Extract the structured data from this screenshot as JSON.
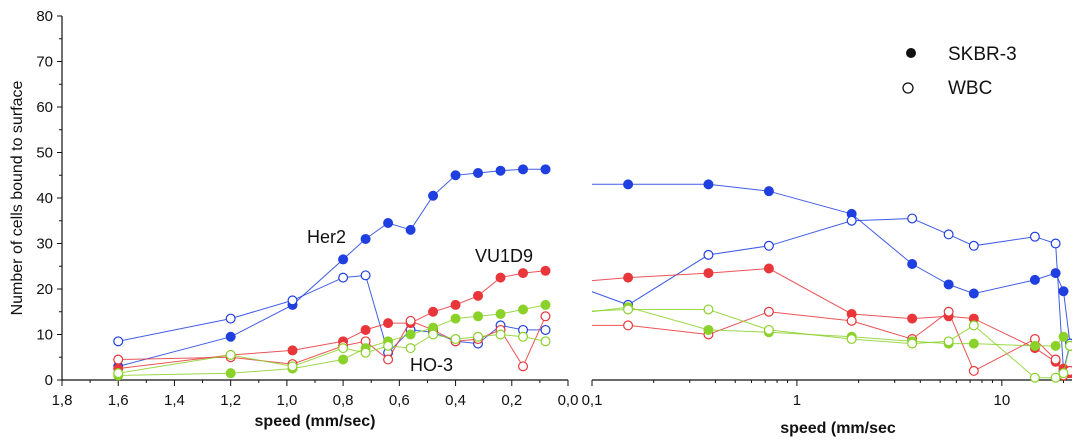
{
  "colors": {
    "her2": "#1f3fe0",
    "vu1d9": "#e8363a",
    "ho3": "#8ad12a",
    "axis": "#111111"
  },
  "legend": {
    "solid_label": "SKBR-3",
    "open_label": "WBC"
  },
  "chart_data": [
    {
      "type": "line",
      "title": "",
      "xlabel": "speed (mm/sec)",
      "ylabel": "Number of cells bound to surface",
      "xlim": [
        1.8,
        0.0
      ],
      "ylim": [
        0,
        80
      ],
      "x_reversed": true,
      "x_ticks": [
        "1,8",
        "1,6",
        "1,4",
        "1,2",
        "1,0",
        "0,8",
        "0,6",
        "0,4",
        "0,2",
        "0,0"
      ],
      "y_ticks": [
        "0",
        "10",
        "20",
        "30",
        "40",
        "50",
        "60",
        "70",
        "80"
      ],
      "annotations": [
        {
          "text": "Her2",
          "x": 0.9,
          "y": 31.5
        },
        {
          "text": "VU1D9",
          "x": 0.21,
          "y": 27.8
        },
        {
          "text": "HO-3",
          "x": 0.44,
          "y": 2.2
        }
      ],
      "series": [
        {
          "antibody": "her2",
          "cells": "SKBR-3",
          "marker": "filled",
          "x": [
            1.6,
            1.2,
            0.98,
            0.8,
            0.72,
            0.64,
            0.56,
            0.48,
            0.4,
            0.32,
            0.24,
            0.16,
            0.08
          ],
          "y": [
            3,
            9.5,
            16.5,
            26.5,
            31,
            34.5,
            33,
            40.5,
            45,
            45.5,
            46,
            46.3,
            46.3
          ]
        },
        {
          "antibody": "her2",
          "cells": "WBC",
          "marker": "open",
          "x": [
            1.6,
            1.2,
            0.98,
            0.8,
            0.72,
            0.64,
            0.56,
            0.48,
            0.4,
            0.32,
            0.24,
            0.16,
            0.08
          ],
          "y": [
            8.5,
            13.5,
            17.5,
            22.5,
            23,
            6,
            11,
            10.5,
            8.5,
            8,
            12,
            11,
            11
          ]
        },
        {
          "antibody": "vu1d9",
          "cells": "SKBR-3",
          "marker": "filled",
          "x": [
            1.6,
            1.2,
            0.98,
            0.8,
            0.72,
            0.64,
            0.56,
            0.48,
            0.4,
            0.32,
            0.24,
            0.16,
            0.08
          ],
          "y": [
            2.5,
            5.5,
            6.5,
            8.5,
            11,
            12.5,
            12.5,
            15,
            16.5,
            18.5,
            22.5,
            23.5,
            24
          ]
        },
        {
          "antibody": "vu1d9",
          "cells": "WBC",
          "marker": "open",
          "x": [
            1.6,
            1.2,
            0.98,
            0.8,
            0.72,
            0.64,
            0.56,
            0.48,
            0.4,
            0.32,
            0.24,
            0.16,
            0.08
          ],
          "y": [
            4.5,
            5,
            3.5,
            7.5,
            8.5,
            4.5,
            13,
            11,
            8.5,
            9,
            11,
            3,
            14
          ]
        },
        {
          "antibody": "ho3",
          "cells": "SKBR-3",
          "marker": "filled",
          "x": [
            1.6,
            1.2,
            0.98,
            0.8,
            0.72,
            0.64,
            0.56,
            0.48,
            0.4,
            0.32,
            0.24,
            0.16,
            0.08
          ],
          "y": [
            1,
            1.5,
            2.5,
            4.5,
            7,
            8.5,
            10,
            11.5,
            13.5,
            14,
            14.5,
            15.5,
            16.5
          ]
        },
        {
          "antibody": "ho3",
          "cells": "WBC",
          "marker": "open",
          "x": [
            1.6,
            1.2,
            0.98,
            0.8,
            0.72,
            0.64,
            0.56,
            0.48,
            0.4,
            0.32,
            0.24,
            0.16,
            0.08
          ],
          "y": [
            1.5,
            5.5,
            3,
            7,
            6,
            7.5,
            7,
            10,
            9,
            9.5,
            10,
            9.5,
            8.5
          ]
        }
      ]
    },
    {
      "type": "line",
      "title": "",
      "xlabel": "speed (mm/sec",
      "ylabel": "",
      "xscale": "log",
      "xlim": [
        0.1,
        22
      ],
      "ylim": [
        0,
        80
      ],
      "x_ticks": [
        "0,1",
        "1",
        "10"
      ],
      "series": [
        {
          "antibody": "her2",
          "cells": "SKBR-3",
          "marker": "filled",
          "x": [
            0.08,
            0.15,
            0.37,
            0.73,
            1.85,
            3.65,
            5.5,
            7.3,
            14.5,
            18.3,
            20,
            21.5
          ],
          "y": [
            43,
            43,
            43,
            41.5,
            36.5,
            25.5,
            21,
            19,
            22,
            23.5,
            19.5,
            8
          ]
        },
        {
          "antibody": "her2",
          "cells": "WBC",
          "marker": "open",
          "x": [
            0.08,
            0.15,
            0.37,
            0.73,
            1.85,
            3.65,
            5.5,
            7.3,
            14.5,
            18.3,
            20,
            21.5
          ],
          "y": [
            21,
            16.5,
            27.5,
            29.5,
            35,
            35.5,
            32,
            29.5,
            31.5,
            30,
            2,
            8
          ]
        },
        {
          "antibody": "vu1d9",
          "cells": "SKBR-3",
          "marker": "filled",
          "x": [
            0.08,
            0.15,
            0.37,
            0.73,
            1.85,
            3.65,
            5.5,
            7.3,
            14.5,
            18.3,
            20,
            21.5
          ],
          "y": [
            21.5,
            22.5,
            23.5,
            24.5,
            14.5,
            13.5,
            14,
            13.5,
            7,
            4,
            2.5,
            1.5
          ]
        },
        {
          "antibody": "vu1d9",
          "cells": "WBC",
          "marker": "open",
          "x": [
            0.08,
            0.15,
            0.37,
            0.73,
            1.85,
            3.65,
            5.5,
            7.3,
            14.5,
            18.3,
            20,
            21.5
          ],
          "y": [
            12,
            12,
            10,
            15,
            13,
            9,
            15,
            2,
            9,
            4.5,
            1,
            2
          ]
        },
        {
          "antibody": "ho3",
          "cells": "SKBR-3",
          "marker": "filled",
          "x": [
            0.08,
            0.15,
            0.37,
            0.73,
            1.85,
            3.65,
            5.5,
            7.3,
            14.5,
            18.3,
            20,
            21.5
          ],
          "y": [
            14.5,
            16,
            11,
            10.5,
            9.5,
            8.5,
            8,
            8,
            7.5,
            7.5,
            9.5,
            7.5
          ]
        },
        {
          "antibody": "ho3",
          "cells": "WBC",
          "marker": "open",
          "x": [
            0.08,
            0.15,
            0.37,
            0.73,
            1.85,
            3.65,
            5.5,
            7.3,
            14.5,
            18.3,
            20,
            21.5
          ],
          "y": [
            15,
            15.5,
            15.5,
            11,
            9,
            8,
            8.5,
            12,
            0.5,
            0.5,
            1.5,
            7.5
          ]
        }
      ]
    }
  ]
}
